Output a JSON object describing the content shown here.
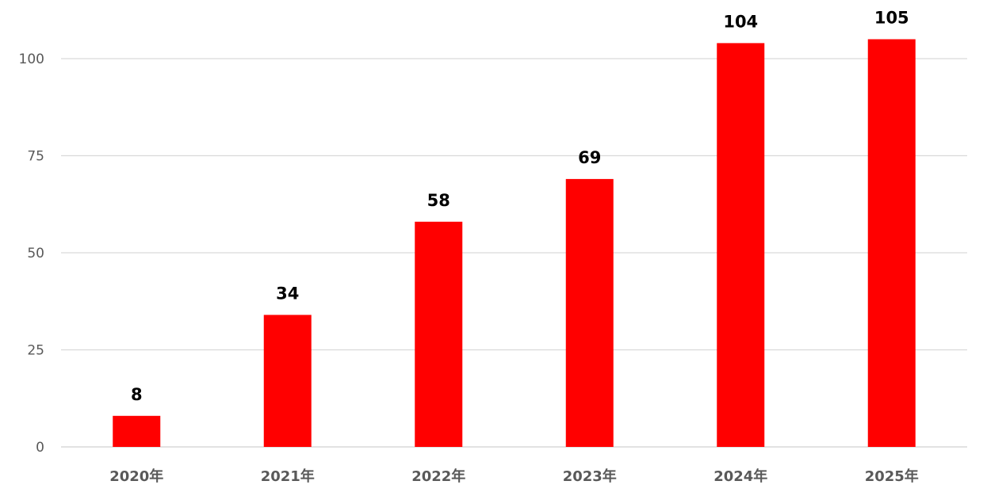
{
  "chart_data": {
    "type": "bar",
    "categories": [
      "2020年",
      "2021年",
      "2022年",
      "2023年",
      "2024年",
      "2025年"
    ],
    "values": [
      8,
      34,
      58,
      69,
      104,
      105
    ],
    "data_labels": [
      "8",
      "34",
      "58",
      "69",
      "104",
      "105"
    ],
    "yticks": [
      0,
      25,
      50,
      75,
      100
    ],
    "ylim": [
      0,
      110
    ],
    "grid": true,
    "legend": "none",
    "title": "",
    "xlabel": "",
    "ylabel": "",
    "bar_color": "#ff0000",
    "grid_color": "#d9d9d9"
  }
}
